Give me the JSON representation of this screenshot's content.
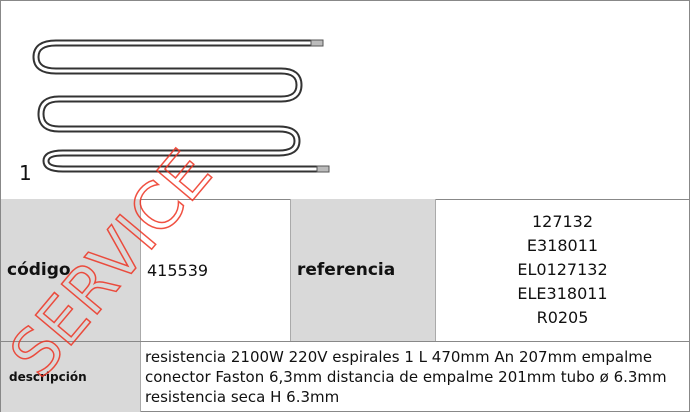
{
  "figure": {
    "label": "1"
  },
  "watermark": "SERVICE",
  "table": {
    "codigo_label": "código",
    "codigo": "415539",
    "referencia_label": "referencia",
    "referencias": [
      "127132",
      "E318011",
      "EL0127132",
      "ELE318011",
      "R0205"
    ],
    "descripcion_label": "descripción",
    "descripcion": "resistencia  2100W 220V espirales 1 L 470mm An 207mm empalme conector Faston 6,3mm distancia de empalme 201mm tubo ø 6.3mm resistencia seca H 6.3mm"
  }
}
